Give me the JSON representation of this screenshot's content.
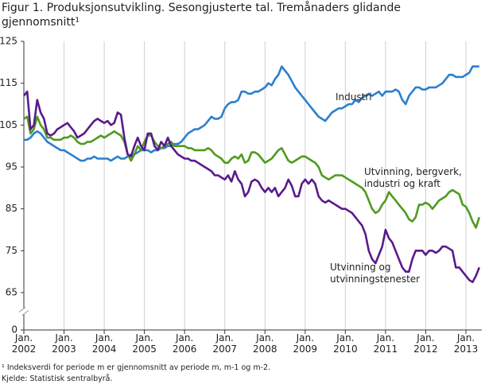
{
  "chart_data": {
    "type": "line",
    "title": "Figur 1. Produksjonsutvikling. Sesongjusterte tal. Tremånaders glidande gjennomsnitt¹",
    "footnotes": [
      "¹ Indeksverdi for periode m er gjennomsnitt av periode m, m-1 og m-2.",
      "Kjelde: Statistisk sentralbyrå."
    ],
    "x": [
      "2002-01",
      "2002-02",
      "2002-03",
      "2002-04",
      "2002-05",
      "2002-06",
      "2002-07",
      "2002-08",
      "2002-09",
      "2002-10",
      "2002-11",
      "2002-12",
      "2003-01",
      "2003-02",
      "2003-03",
      "2003-04",
      "2003-05",
      "2003-06",
      "2003-07",
      "2003-08",
      "2003-09",
      "2003-10",
      "2003-11",
      "2003-12",
      "2004-01",
      "2004-02",
      "2004-03",
      "2004-04",
      "2004-05",
      "2004-06",
      "2004-07",
      "2004-08",
      "2004-09",
      "2004-10",
      "2004-11",
      "2004-12",
      "2005-01",
      "2005-02",
      "2005-03",
      "2005-04",
      "2005-05",
      "2005-06",
      "2005-07",
      "2005-08",
      "2005-09",
      "2005-10",
      "2005-11",
      "2005-12",
      "2006-01",
      "2006-02",
      "2006-03",
      "2006-04",
      "2006-05",
      "2006-06",
      "2006-07",
      "2006-08",
      "2006-09",
      "2006-10",
      "2006-11",
      "2006-12",
      "2007-01",
      "2007-02",
      "2007-03",
      "2007-04",
      "2007-05",
      "2007-06",
      "2007-07",
      "2007-08",
      "2007-09",
      "2007-10",
      "2007-11",
      "2007-12",
      "2008-01",
      "2008-02",
      "2008-03",
      "2008-04",
      "2008-05",
      "2008-06",
      "2008-07",
      "2008-08",
      "2008-09",
      "2008-10",
      "2008-11",
      "2008-12",
      "2009-01",
      "2009-02",
      "2009-03",
      "2009-04",
      "2009-05",
      "2009-06",
      "2009-07",
      "2009-08",
      "2009-09",
      "2009-10",
      "2009-11",
      "2009-12",
      "2010-01",
      "2010-02",
      "2010-03",
      "2010-04",
      "2010-05",
      "2010-06",
      "2010-07",
      "2010-08",
      "2010-09",
      "2010-10",
      "2010-11",
      "2010-12",
      "2011-01",
      "2011-02",
      "2011-03",
      "2011-04",
      "2011-05",
      "2011-06",
      "2011-07",
      "2011-08",
      "2011-09",
      "2011-10",
      "2011-11",
      "2011-12",
      "2012-01",
      "2012-02",
      "2012-03",
      "2012-04",
      "2012-05",
      "2012-06",
      "2012-07",
      "2012-08",
      "2012-09",
      "2012-10",
      "2012-11",
      "2012-12",
      "2013-01",
      "2013-02",
      "2013-03",
      "2013-04",
      "2013-05"
    ],
    "series": [
      {
        "name": "Industri",
        "color": "#2b7fcf",
        "values": [
          101.5,
          101.5,
          102,
          103,
          103.5,
          103,
          102,
          101,
          100.5,
          100,
          99.5,
          99,
          99,
          98.5,
          98,
          97.5,
          97,
          96.5,
          96.5,
          97,
          97,
          97.5,
          97,
          97,
          97,
          97,
          96.5,
          97,
          97.5,
          97,
          97,
          97.5,
          98,
          98,
          98.5,
          99,
          99,
          99,
          98.5,
          99,
          99,
          99.5,
          99.5,
          100,
          100,
          100.5,
          100.5,
          101,
          102,
          103,
          103.5,
          104,
          104,
          104.5,
          105,
          106,
          107,
          106.5,
          106.5,
          107,
          109,
          110,
          110.5,
          110.5,
          111,
          113,
          113,
          112.5,
          112.5,
          113,
          113,
          113.5,
          114,
          115,
          114.5,
          116,
          117,
          119,
          118,
          117,
          115.5,
          114,
          113,
          112,
          111,
          110,
          109,
          108,
          107,
          106.5,
          106,
          107,
          108,
          108.5,
          109,
          109,
          109.5,
          110,
          110,
          111,
          110.5,
          111.5,
          112,
          112.5,
          112,
          112.5,
          113,
          112,
          113,
          113,
          113,
          113.5,
          113,
          111,
          110,
          112,
          113,
          114,
          114,
          113.5,
          113.5,
          114,
          114,
          114,
          114.5,
          115,
          116,
          117,
          117,
          116.5,
          116.5,
          116.5,
          117,
          117.5,
          119,
          119,
          119
        ]
      },
      {
        "name": "Utvinning, bergverk, industri og kraft",
        "color": "#4f9a1f",
        "values": [
          106.5,
          107,
          103,
          104,
          107,
          105,
          104,
          102,
          102,
          101.5,
          101.5,
          101.5,
          102,
          102,
          102.5,
          102,
          101,
          100.5,
          100.5,
          101,
          101,
          101.5,
          102,
          102.5,
          102,
          102.5,
          103,
          103.5,
          103,
          102.5,
          101,
          98,
          96.5,
          98,
          100,
          99,
          101,
          102.5,
          102.5,
          101,
          100,
          99.5,
          100,
          100.5,
          101,
          100,
          100,
          100,
          100,
          99.5,
          99.5,
          99,
          99,
          99,
          99,
          99.5,
          99,
          98,
          97.5,
          97,
          96,
          96,
          97,
          97.5,
          97,
          98,
          96,
          96.5,
          98.5,
          98.5,
          98,
          97,
          96,
          96.5,
          97,
          98,
          99,
          99.5,
          98,
          96.5,
          96,
          96.5,
          97,
          97.5,
          97.5,
          97,
          96.5,
          96,
          95,
          93,
          92.5,
          92,
          92.5,
          93,
          93,
          93,
          92.5,
          92,
          91.5,
          91,
          90.5,
          90,
          89,
          87,
          85,
          84,
          84.5,
          86,
          87,
          89,
          88,
          87,
          86,
          85,
          84,
          82.5,
          82,
          83,
          86,
          86,
          86.5,
          86,
          85,
          86,
          87,
          87.5,
          88,
          89,
          89.5,
          89,
          88.5,
          86,
          85.5,
          84,
          82,
          80.5,
          83
        ]
      },
      {
        "name": "Utvinning og utvinningstenester",
        "color": "#5a1a8c",
        "values": [
          112,
          113,
          104,
          105,
          111,
          108,
          106.5,
          103,
          102.5,
          103,
          104,
          104.5,
          105,
          105.5,
          104.5,
          103.5,
          102,
          102.5,
          103,
          104,
          105,
          106,
          106.5,
          106,
          105.5,
          106,
          105,
          105.5,
          108,
          107.5,
          102,
          98,
          97.5,
          100,
          102,
          100,
          99,
          103,
          103,
          100,
          99,
          101,
          100,
          102,
          100,
          99,
          98,
          97.5,
          97,
          97,
          96.5,
          96.5,
          96,
          95.5,
          95,
          94.5,
          94,
          93,
          93,
          92.5,
          92,
          93,
          91.5,
          94,
          92,
          91,
          88,
          89,
          91.5,
          92,
          91.5,
          90,
          89,
          90,
          89,
          90,
          88,
          89,
          90,
          92,
          90.5,
          88,
          88,
          91,
          92,
          91,
          92,
          91,
          88,
          87,
          86.5,
          87,
          86.5,
          86,
          85.5,
          85,
          85,
          84.5,
          84,
          83,
          82,
          81,
          79,
          75,
          73,
          72,
          74,
          76,
          80,
          78,
          77,
          75,
          73,
          71,
          70,
          70,
          73,
          75,
          75,
          75,
          74,
          75,
          75,
          74.5,
          75,
          76,
          76,
          75.5,
          75,
          71,
          71,
          70,
          69,
          68,
          67.5,
          69,
          71
        ]
      }
    ],
    "xticks": [
      {
        "value": "2002-01",
        "label": "Jan. 2002"
      },
      {
        "value": "2003-01",
        "label": "Jan. 2003"
      },
      {
        "value": "2004-01",
        "label": "Jan. 2004"
      },
      {
        "value": "2005-01",
        "label": "Jan. 2005"
      },
      {
        "value": "2006-01",
        "label": "Jan. 2006"
      },
      {
        "value": "2007-01",
        "label": "Jan. 2007"
      },
      {
        "value": "2008-01",
        "label": "Jan. 2008"
      },
      {
        "value": "2009-01",
        "label": "Jan. 2009"
      },
      {
        "value": "2010-01",
        "label": "Jan. 2010"
      },
      {
        "value": "2011-01",
        "label": "Jan. 2011"
      },
      {
        "value": "2012-01",
        "label": "Jan. 2012"
      },
      {
        "value": "2013-01",
        "label": "Jan. 2013"
      }
    ],
    "ylim": [
      0,
      125
    ],
    "yticks": [
      0,
      65,
      75,
      85,
      95,
      105,
      115,
      125
    ],
    "axis_break": true,
    "grid": "x"
  }
}
